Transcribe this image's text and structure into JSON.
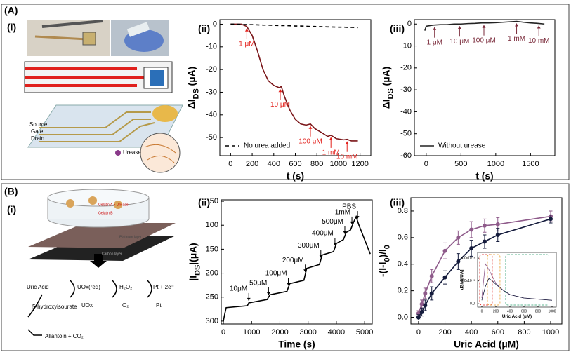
{
  "panel_a": {
    "label": "(A)",
    "sublabel": "(i)",
    "electrodes": [
      "Source",
      "Gate",
      "Drain"
    ],
    "urease": "Urease"
  },
  "panel_b": {
    "label": "(B)",
    "sublabel": "(i)",
    "dish": [
      "Gelatin A + Uricase",
      "Gelatin B"
    ],
    "layers": [
      "Platinum layer",
      "Carbon layer"
    ],
    "scheme": {
      "uric_acid": "Uric Acid",
      "uox_red": "UOx(red)",
      "h2o2": "H₂O₂",
      "pt2e": "Pt + 2e⁻",
      "uox": "UOx",
      "o2": "O₂",
      "pt": "Pt",
      "hydroxy": "5-hydroxyisourate",
      "allantoin": "Allantoin + CO₂"
    }
  },
  "chart_data": [
    {
      "type": "line",
      "label": "(ii)",
      "xlabel": "t (s)",
      "ylabel": [
        "ΔI",
        "DS",
        " (μA)"
      ],
      "x": [
        0,
        50,
        100,
        150,
        200,
        250,
        300,
        350,
        400,
        450,
        470,
        500,
        550,
        600,
        650,
        700,
        740,
        780,
        850,
        900,
        930,
        980,
        1050,
        1080,
        1120,
        1180
      ],
      "series": [
        {
          "color": "#7a1518",
          "values": [
            0,
            0,
            0,
            -1,
            -5,
            -12,
            -20,
            -25,
            -27,
            -28,
            -27.5,
            -32,
            -38,
            -42,
            -44,
            -44.5,
            -44,
            -46,
            -48,
            -49.5,
            -49,
            -50.5,
            -51,
            -50.8,
            -51.5,
            -51.5
          ]
        },
        {
          "name": "No urea added",
          "color": "#000000",
          "dash": true,
          "values": [
            0,
            0,
            -0.1,
            -0.2,
            -0.2,
            -0.3,
            -0.4,
            -0.4,
            -0.5,
            -0.6,
            -0.6,
            -0.6,
            -0.7,
            -0.8,
            -0.8,
            -0.9,
            -1,
            -1,
            -1.1,
            -1.2,
            -1.2,
            -1.3,
            -1.3,
            -1.4,
            -1.4,
            -1.5
          ]
        }
      ],
      "annotations": [
        {
          "text": "1 μM",
          "x": 150
        },
        {
          "text": "10 μM",
          "x": 460
        },
        {
          "text": "100 μM",
          "x": 740
        },
        {
          "text": "1 mM",
          "x": 930
        },
        {
          "text": "10 mM",
          "x": 1080
        }
      ],
      "annotation_color": "#e3201b",
      "xlim": [
        -100,
        1300
      ],
      "xticks": [
        0,
        200,
        400,
        600,
        800,
        1000,
        1200
      ],
      "ylim": [
        -58,
        2
      ],
      "yticks": [
        0,
        -10,
        -20,
        -30,
        -40,
        -50
      ],
      "legend": "lower left"
    },
    {
      "type": "line",
      "label": "(iii)",
      "xlabel": "t (s)",
      "ylabel": [
        "ΔI",
        "DS",
        " (μA)"
      ],
      "x": [
        -20,
        0,
        100,
        200,
        300,
        400,
        500,
        600,
        700,
        800,
        900,
        1000,
        1100,
        1200,
        1300,
        1400,
        1500,
        1600,
        1700
      ],
      "series": [
        {
          "name": "Without urease",
          "color": "#222222",
          "values": [
            -3,
            -1,
            -0.5,
            -0.3,
            -0.3,
            0,
            0,
            0.2,
            0.3,
            0.5,
            0.5,
            0.6,
            0.8,
            1,
            1.2,
            0.8,
            0.5,
            0.3,
            0
          ]
        }
      ],
      "annotations": [
        {
          "text": "1 μM",
          "x": 120
        },
        {
          "text": "10 μM",
          "x": 480
        },
        {
          "text": "100 μM",
          "x": 830
        },
        {
          "text": "1 mM",
          "x": 1300
        },
        {
          "text": "10 mM",
          "x": 1620
        }
      ],
      "annotation_color": "#7a2a3a",
      "xlim": [
        -170,
        1850
      ],
      "xticks": [
        0,
        500,
        1000,
        1500
      ],
      "ylim": [
        -60,
        2
      ],
      "yticks": [
        0,
        -10,
        -20,
        -30,
        -40,
        -50,
        -60
      ],
      "legend": "lower left"
    },
    {
      "type": "line",
      "label": "(ii)",
      "xlabel": "Time (s)",
      "ylabel": [
        "|I",
        "DS",
        "|(μA)"
      ],
      "x": [
        0,
        50,
        100,
        850,
        900,
        1550,
        1650,
        2250,
        2350,
        2850,
        2950,
        3400,
        3500,
        3900,
        4000,
        4250,
        4350,
        4500,
        4600,
        4700,
        4800,
        5000,
        5200
      ],
      "series": [
        {
          "color": "#000000",
          "values": [
            300,
            285,
            272,
            268,
            262,
            255,
            245,
            238,
            222,
            215,
            190,
            182,
            162,
            155,
            138,
            130,
            115,
            110,
            95,
            82,
            100,
            130,
            160
          ]
        }
      ],
      "annotations": [
        {
          "text": "10μM",
          "x": 900
        },
        {
          "text": "50μM",
          "x": 1600
        },
        {
          "text": "100μM",
          "x": 2300
        },
        {
          "text": "200μM",
          "x": 2900
        },
        {
          "text": "300μM",
          "x": 3450
        },
        {
          "text": "400μM",
          "x": 3950
        },
        {
          "text": "500μM",
          "x": 4300
        },
        {
          "text": "1mM",
          "x": 4550
        },
        {
          "text": "PBS",
          "x": 4750
        }
      ],
      "annotation_color": "#000000",
      "xlim": [
        -75,
        5270
      ],
      "xticks": [
        0,
        1000,
        2000,
        3000,
        4000,
        5000
      ],
      "ylim": [
        306,
        47
      ],
      "yticks": [
        50,
        100,
        150,
        200,
        250,
        300
      ]
    },
    {
      "type": "line",
      "label": "(iii)",
      "xlabel": "Uric Acid (μM)",
      "ylabel": [
        "-(I-I",
        "0",
        ")/I",
        "0"
      ],
      "markers": true,
      "x": [
        0,
        25,
        50,
        100,
        200,
        300,
        400,
        500,
        600,
        1000
      ],
      "series": [
        {
          "color": "#8e5a8a",
          "values": [
            0.03,
            0.1,
            0.18,
            0.31,
            0.5,
            0.6,
            0.66,
            0.69,
            0.7,
            0.76
          ],
          "errors": [
            0.02,
            0.03,
            0.04,
            0.05,
            0.06,
            0.05,
            0.06,
            0.05,
            0.05,
            0.04
          ]
        },
        {
          "color": "#141b3c",
          "values": [
            0,
            0.04,
            0.09,
            0.18,
            0.3,
            0.42,
            0.52,
            0.57,
            0.62,
            0.74
          ],
          "errors": [
            0.02,
            0.03,
            0.04,
            0.05,
            0.05,
            0.06,
            0.06,
            0.05,
            0.05,
            0.03
          ]
        }
      ],
      "xlim": [
        -58,
        1085
      ],
      "xticks": [
        0,
        200,
        400,
        600,
        800,
        1000
      ],
      "ylim": [
        -0.05,
        0.9
      ],
      "yticks": [
        {
          "value": 0,
          "label": "0.0"
        },
        0.2,
        0.4,
        0.6,
        0.8
      ]
    },
    {
      "type": "line",
      "xlabel": "Uric Acid (μM)",
      "ylabel": [
        "dS/dt[UA]"
      ],
      "x": [
        0,
        50,
        100,
        150,
        200,
        300,
        400,
        600,
        800,
        1000
      ],
      "series": [
        {
          "color": "#8e5a8a",
          "values": [
            0.0005,
            0.0035,
            0.003,
            0.0024,
            0.0018,
            0.0012,
            0.0008,
            0.0005,
            0.0004,
            0.0003
          ]
        },
        {
          "color": "#141b3c",
          "values": [
            0.0003,
            0.0015,
            0.0022,
            0.002,
            0.0017,
            0.0012,
            0.0008,
            0.0005,
            0.0004,
            0.0003
          ]
        }
      ],
      "xlim": [
        -60,
        1060
      ],
      "xticks": [
        0,
        200,
        400,
        600,
        800,
        1000
      ],
      "ylim": [
        -0.0003,
        0.0045
      ],
      "yticks": [
        {
          "value": 0,
          "label": "0.0"
        },
        {
          "value": 0.002,
          "label": "2.0x10⁻³"
        },
        {
          "value": 0.004,
          "label": "4.0x10⁻³"
        }
      ]
    }
  ]
}
